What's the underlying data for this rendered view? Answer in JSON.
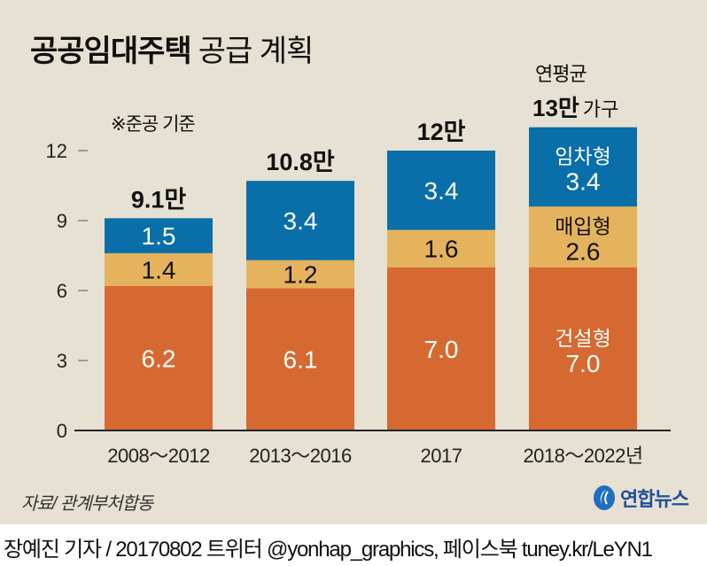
{
  "title": {
    "bold": "공공임대주택",
    "light": "공급 계획"
  },
  "note": "※준공 기준",
  "annual_average": {
    "label": "연평균",
    "value": "13만",
    "unit": "가구"
  },
  "source": "자료/ 관계부처합동",
  "logo": {
    "name": "연합뉴스"
  },
  "credit": "장예진 기자 / 20170802 트위터 @yonhap_graphics, 페이스북 tuney.kr/LeYN1",
  "colors": {
    "background": "#e6e1d2",
    "rental": "#0a6fa8",
    "purchase": "#e5b35d",
    "construction": "#d66932"
  },
  "chart_data": {
    "type": "bar",
    "stacked": true,
    "title": "공공임대주택 공급 계획",
    "xlabel": "",
    "ylabel": "",
    "unit": "만 가구",
    "ylim": [
      0,
      12
    ],
    "yticks": [
      0,
      3,
      6,
      9,
      12
    ],
    "grid": false,
    "categories": [
      "2008~2012",
      "2013~2016",
      "2017",
      "2018~2022년"
    ],
    "series": [
      {
        "name": "건설형",
        "color": "#d66932",
        "values": [
          6.2,
          6.1,
          7.0,
          7.0
        ],
        "label_color": "#ffffff"
      },
      {
        "name": "매입형",
        "color": "#e5b35d",
        "values": [
          1.4,
          1.2,
          1.6,
          2.6
        ],
        "label_color": "#111111"
      },
      {
        "name": "임차형",
        "color": "#0a6fa8",
        "values": [
          1.5,
          3.4,
          3.4,
          3.4
        ],
        "label_color": "#ffffff"
      }
    ],
    "totals": [
      "9.1만",
      "10.8만",
      "12만",
      ""
    ],
    "inline_series_labels_on_category": "2018~2022년"
  }
}
